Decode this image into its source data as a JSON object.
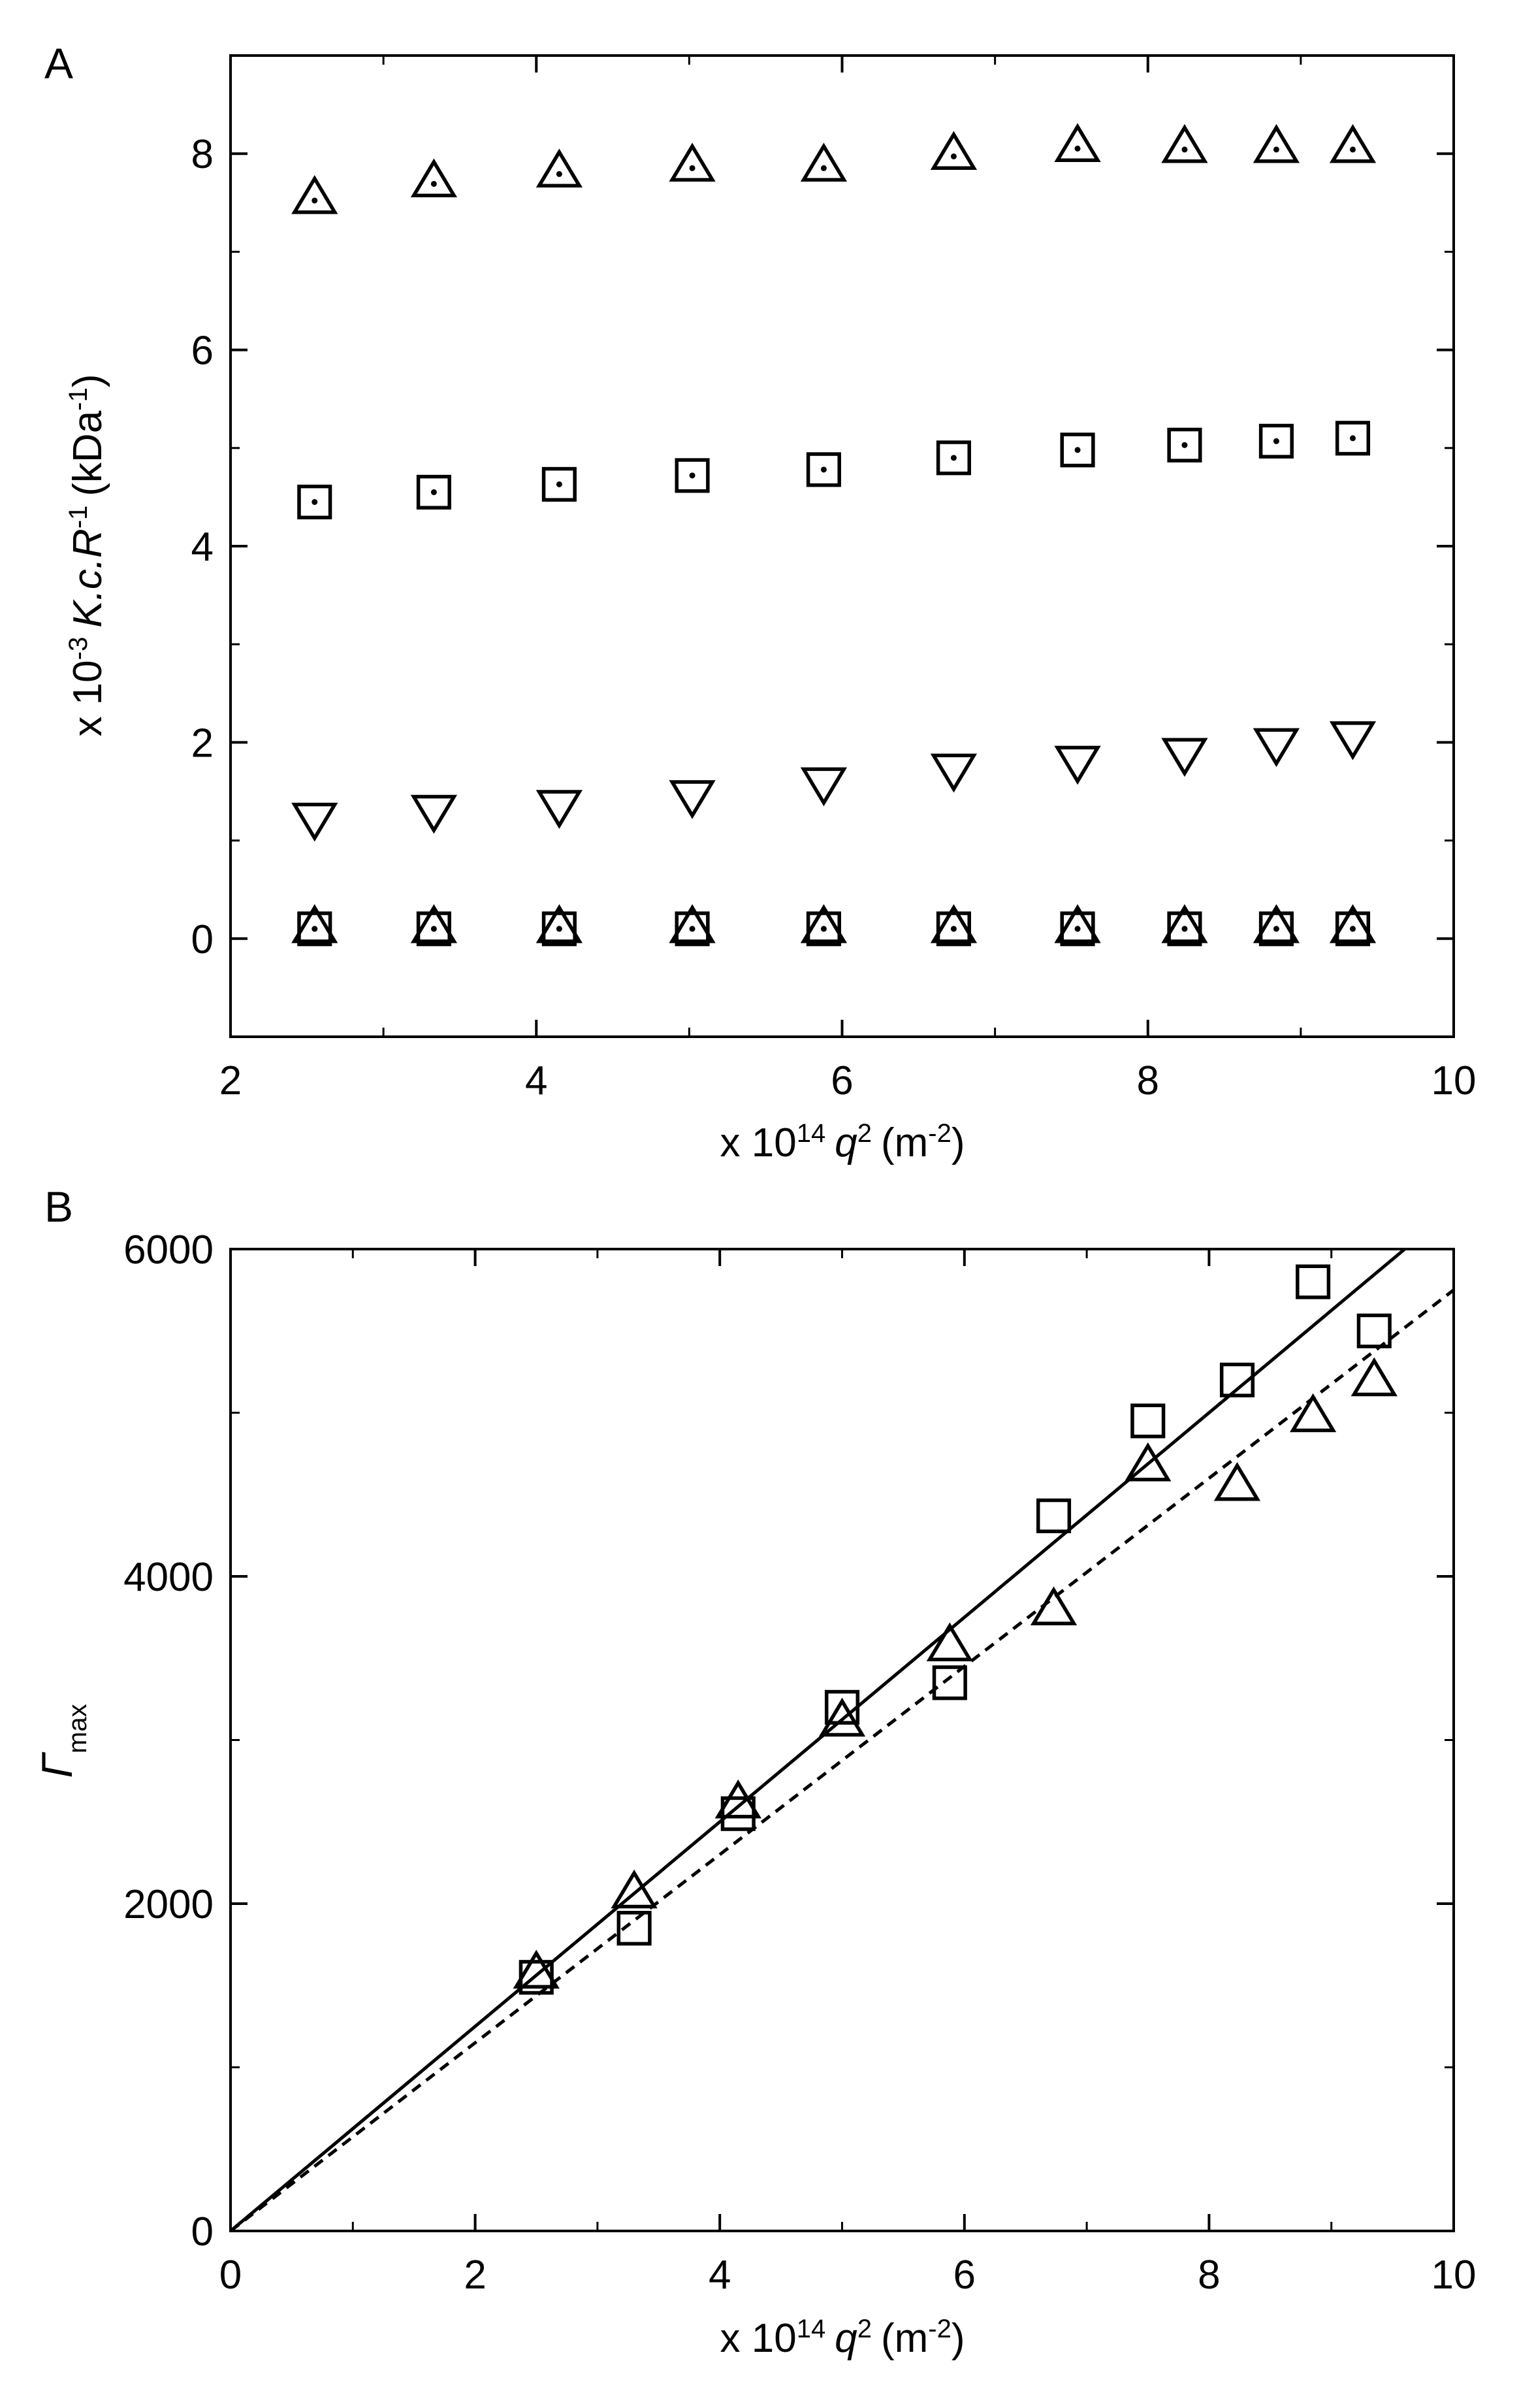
{
  "chart_data": [
    {
      "panel": "A",
      "type": "scatter",
      "xlabel": {
        "prefix": "x 10",
        "exp": "14",
        "var": "q",
        "varexp": "2",
        "unit": "(m",
        "unitexp": "-2",
        "close": ")"
      },
      "ylabel": {
        "prefix": "x 10",
        "exp": "-3",
        "var": "K.c.R",
        "varexp": "-1",
        "unit": "(kDa",
        "unitexp": "-1",
        "close": ")"
      },
      "xlim": [
        2,
        10
      ],
      "ylim": [
        -1,
        9
      ],
      "xticks": [
        "2",
        "4",
        "6",
        "8",
        "10"
      ],
      "yticks": [
        "0",
        "2",
        "4",
        "6",
        "8"
      ],
      "grid": false,
      "x": [
        2.55,
        3.33,
        4.15,
        5.02,
        5.88,
        6.73,
        7.54,
        8.24,
        8.84,
        9.34
      ],
      "series": [
        {
          "marker": "triangle-up-dot",
          "values": [
            7.55,
            7.72,
            7.82,
            7.88,
            7.88,
            8.0,
            8.08,
            8.07,
            8.07,
            8.07
          ]
        },
        {
          "marker": "square-dot",
          "values": [
            4.45,
            4.55,
            4.63,
            4.72,
            4.78,
            4.9,
            4.98,
            5.03,
            5.07,
            5.1
          ]
        },
        {
          "marker": "triangle-down",
          "values": [
            1.22,
            1.3,
            1.35,
            1.45,
            1.58,
            1.72,
            1.8,
            1.88,
            1.98,
            2.05
          ]
        },
        {
          "marker": "square-dot",
          "values": [
            0.1,
            0.1,
            0.1,
            0.1,
            0.1,
            0.1,
            0.1,
            0.1,
            0.1,
            0.1
          ]
        },
        {
          "marker": "triangle-up",
          "values": [
            0.12,
            0.12,
            0.12,
            0.12,
            0.12,
            0.12,
            0.12,
            0.12,
            0.12,
            0.12
          ]
        }
      ]
    },
    {
      "panel": "B",
      "type": "scatter",
      "xlabel": {
        "prefix": "x 10",
        "exp": "14",
        "var": "q",
        "varexp": "2",
        "unit": "(m",
        "unitexp": "-2",
        "close": ")"
      },
      "ylabel": {
        "var": "Γ",
        "sub": "max"
      },
      "xlim": [
        0,
        10
      ],
      "ylim": [
        0,
        6000
      ],
      "xticks": [
        "0",
        "2",
        "4",
        "6",
        "8",
        "10"
      ],
      "yticks": [
        "0",
        "2000",
        "4000",
        "6000"
      ],
      "grid": false,
      "series": [
        {
          "marker": "square",
          "x": [
            2.5,
            3.3,
            4.15,
            5.0,
            5.88,
            6.73,
            7.5,
            8.23,
            8.85,
            9.35
          ],
          "values": [
            1550,
            1850,
            2550,
            3200,
            3350,
            4370,
            4950,
            5200,
            5800,
            5500
          ],
          "fit": {
            "style": "solid",
            "slope": 625,
            "intercept": 0
          }
        },
        {
          "marker": "triangle-up",
          "x": [
            2.5,
            3.3,
            4.15,
            5.0,
            5.88,
            6.73,
            7.5,
            8.23,
            8.85,
            9.35
          ],
          "values": [
            1580,
            2070,
            2620,
            3120,
            3580,
            3800,
            4680,
            4560,
            4980,
            5200
          ],
          "fit": {
            "style": "dashed",
            "slope": 575,
            "intercept": 0
          }
        }
      ]
    }
  ]
}
